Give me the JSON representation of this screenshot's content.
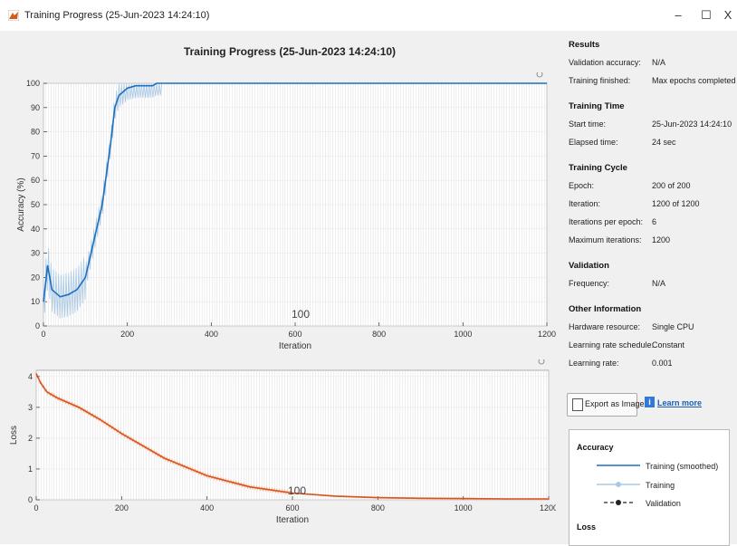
{
  "window": {
    "title": "Training Progress (25-Jun-2023 14:24:10)",
    "controls": [
      "–",
      "☐",
      "X"
    ]
  },
  "plot": {
    "title": "Training Progress (25-Jun-2023 14:24:10)",
    "accuracy_overlay_label": "100",
    "loss_overlay_label": "100"
  },
  "chart_data": [
    {
      "type": "line",
      "xlabel": "Iteration",
      "ylabel": "Accuracy (%)",
      "xlim": [
        0,
        1200
      ],
      "ylim": [
        0,
        100
      ],
      "xticks": [
        0,
        200,
        400,
        600,
        800,
        1000,
        1200
      ],
      "yticks": [
        0,
        10,
        20,
        30,
        40,
        50,
        60,
        70,
        80,
        90,
        100
      ],
      "grid": true,
      "series": [
        {
          "x": [
            0,
            10,
            20,
            40,
            60,
            80,
            100,
            120,
            140,
            160,
            170,
            180,
            200,
            220,
            240,
            260,
            270,
            300,
            600,
            900,
            1200
          ],
          "y": [
            10,
            25,
            15,
            12,
            13,
            15,
            20,
            35,
            50,
            75,
            90,
            95,
            98,
            99,
            99,
            99,
            100,
            100,
            100,
            100,
            100
          ]
        }
      ]
    },
    {
      "type": "line",
      "xlabel": "Iteration",
      "ylabel": "Loss",
      "xlim": [
        0,
        1200
      ],
      "ylim": [
        0,
        4.2
      ],
      "xticks": [
        0,
        200,
        400,
        600,
        800,
        1000,
        1200
      ],
      "yticks": [
        0,
        1,
        2,
        3,
        4
      ],
      "grid": true,
      "series": [
        {
          "x": [
            0,
            10,
            25,
            50,
            100,
            150,
            200,
            300,
            400,
            500,
            600,
            700,
            800,
            900,
            1000,
            1100,
            1200
          ],
          "y": [
            4.1,
            3.8,
            3.5,
            3.3,
            3.0,
            2.6,
            2.15,
            1.35,
            0.78,
            0.42,
            0.22,
            0.12,
            0.07,
            0.05,
            0.04,
            0.03,
            0.03
          ]
        }
      ]
    }
  ],
  "results": {
    "title": "Results",
    "rows": [
      {
        "k": "Validation accuracy:",
        "v": "N/A"
      },
      {
        "k": "Training finished:",
        "v": "Max epochs completed"
      }
    ]
  },
  "training_time": {
    "title": "Training Time",
    "rows": [
      {
        "k": "Start time:",
        "v": "25-Jun-2023 14:24:10"
      },
      {
        "k": "Elapsed time:",
        "v": "24 sec"
      }
    ]
  },
  "training_cycle": {
    "title": "Training Cycle",
    "rows": [
      {
        "k": "Epoch:",
        "v": "200 of 200"
      },
      {
        "k": "Iteration:",
        "v": "1200 of 1200"
      },
      {
        "k": "Iterations per epoch:",
        "v": "6"
      },
      {
        "k": "Maximum iterations:",
        "v": "1200"
      }
    ]
  },
  "validation": {
    "title": "Validation",
    "rows": [
      {
        "k": "Frequency:",
        "v": "N/A"
      }
    ]
  },
  "other": {
    "title": "Other Information",
    "rows": [
      {
        "k": "Hardware resource:",
        "v": "Single CPU"
      },
      {
        "k": "Learning rate schedule:",
        "v": "Constant"
      },
      {
        "k": "Learning rate:",
        "v": "0.001"
      }
    ]
  },
  "buttons": {
    "export": "Export as Image",
    "learn_more": "Learn more"
  },
  "legend": {
    "accuracy_title": "Accuracy",
    "training_smoothed": "Training (smoothed)",
    "training": "Training",
    "validation": "Validation",
    "loss_title": "Loss"
  },
  "colors": {
    "accuracy_line": "#1f6fc0",
    "accuracy_raw": "#a9c9e6",
    "loss_line": "#d9531e",
    "loss_raw": "#f2b38f"
  }
}
